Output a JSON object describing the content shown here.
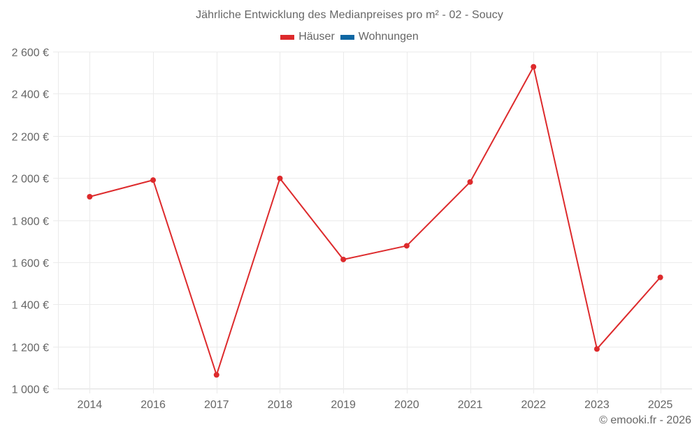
{
  "title": "Jährliche Entwicklung des Medianpreises pro m² - 02 - Soucy",
  "legend": [
    {
      "label": "Häuser",
      "color": "#dd2a2c"
    },
    {
      "label": "Wohnungen",
      "color": "#0f67a3"
    }
  ],
  "credit": "© emooki.fr - 2026",
  "colors": {
    "grid": "#ebebeb",
    "axis": "#dddddd",
    "text": "#666666",
    "series_line": "#dd2a2c"
  },
  "chart_data": {
    "type": "line",
    "title": "Jährliche Entwicklung des Medianpreises pro m² - 02 - Soucy",
    "xlabel": "",
    "ylabel": "",
    "categories": [
      "2014",
      "2016",
      "2017",
      "2018",
      "2019",
      "2020",
      "2021",
      "2022",
      "2023",
      "2025"
    ],
    "series": [
      {
        "name": "Häuser",
        "color": "#dd2a2c",
        "values": [
          1911,
          1990,
          1065,
          1998,
          1613,
          1678,
          1981,
          2528,
          1188,
          1528
        ]
      },
      {
        "name": "Wohnungen",
        "color": "#0f67a3",
        "values": []
      }
    ],
    "ylim": [
      1000,
      2600
    ],
    "yticks": [
      1000,
      1200,
      1400,
      1600,
      1800,
      2000,
      2200,
      2400,
      2600
    ],
    "ytick_labels": [
      "1 000 €",
      "1 200 €",
      "1 400 €",
      "1 600 €",
      "1 800 €",
      "2 000 €",
      "2 200 €",
      "2 400 €",
      "2 600 €"
    ],
    "grid": true,
    "legend_position": "top"
  }
}
